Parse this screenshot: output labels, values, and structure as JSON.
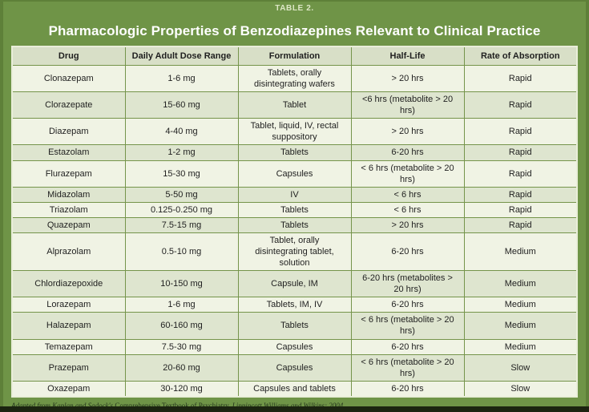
{
  "header": {
    "table_label": "TABLE 2.",
    "title": "Pharmacologic Properties of Benzodiazepines Relevant to Clinical Practice"
  },
  "table": {
    "columns": [
      "Drug",
      "Daily Adult Dose Range",
      "Formulation",
      "Half-Life",
      "Rate of Absorption"
    ],
    "rows": [
      {
        "drug": "Clonazepam",
        "dose": "1-6 mg",
        "formulation": "Tablets, orally disintegrating wafers",
        "half_life": "> 20 hrs",
        "absorption": "Rapid"
      },
      {
        "drug": "Clorazepate",
        "dose": "15-60 mg",
        "formulation": "Tablet",
        "half_life": "<6 hrs (metabolite > 20 hrs)",
        "absorption": "Rapid"
      },
      {
        "drug": "Diazepam",
        "dose": "4-40 mg",
        "formulation": "Tablet, liquid, IV, rectal suppository",
        "half_life": "> 20 hrs",
        "absorption": "Rapid"
      },
      {
        "drug": "Estazolam",
        "dose": "1-2 mg",
        "formulation": "Tablets",
        "half_life": "6-20 hrs",
        "absorption": "Rapid"
      },
      {
        "drug": "Flurazepam",
        "dose": "15-30 mg",
        "formulation": "Capsules",
        "half_life": "< 6 hrs (metabolite > 20 hrs)",
        "absorption": "Rapid"
      },
      {
        "drug": "Midazolam",
        "dose": "5-50 mg",
        "formulation": "IV",
        "half_life": "< 6 hrs",
        "absorption": "Rapid"
      },
      {
        "drug": "Triazolam",
        "dose": "0.125-0.250 mg",
        "formulation": "Tablets",
        "half_life": "< 6 hrs",
        "absorption": "Rapid"
      },
      {
        "drug": "Quazepam",
        "dose": "7.5-15 mg",
        "formulation": "Tablets",
        "half_life": "> 20 hrs",
        "absorption": "Rapid"
      },
      {
        "drug": "Alprazolam",
        "dose": "0.5-10 mg",
        "formulation": "Tablet, orally disintegrating tablet, solution",
        "half_life": "6-20 hrs",
        "absorption": "Medium"
      },
      {
        "drug": "Chlordiazepoxide",
        "dose": "10-150 mg",
        "formulation": "Capsule, IM",
        "half_life": "6-20 hrs (metabolites > 20 hrs)",
        "absorption": "Medium"
      },
      {
        "drug": "Lorazepam",
        "dose": "1-6 mg",
        "formulation": "Tablets, IM, IV",
        "half_life": "6-20 hrs",
        "absorption": "Medium"
      },
      {
        "drug": "Halazepam",
        "dose": "60-160 mg",
        "formulation": "Tablets",
        "half_life": "< 6 hrs (metabolite > 20 hrs)",
        "absorption": "Medium"
      },
      {
        "drug": "Temazepam",
        "dose": "7.5-30 mg",
        "formulation": "Capsules",
        "half_life": "6-20 hrs",
        "absorption": "Medium"
      },
      {
        "drug": "Prazepam",
        "dose": "20-60 mg",
        "formulation": "Capsules",
        "half_life": "< 6 hrs (metabolite > 20 hrs)",
        "absorption": "Slow"
      },
      {
        "drug": "Oxazepam",
        "dose": "30-120 mg",
        "formulation": "Capsules and tablets",
        "half_life": "6-20 hrs",
        "absorption": "Slow"
      }
    ]
  },
  "footnote": {
    "lead_italic": "Adapted from Kaplan and Sadock's",
    "book_title": "Comprehensive Textbook of Psychiatry.",
    "publisher_italic": "Lippincott Williams and Wilkins; 2004."
  },
  "colors": {
    "background_green": "#6f9447",
    "edge_green": "#5e8039",
    "header_row_bg": "#d8dfc7",
    "row_light_bg": "#f0f3e4",
    "row_dark_bg": "#dee5cf",
    "grid_line": "#75944b",
    "table_outer_border": "#e9eed9",
    "title_text": "#ffffff",
    "label_text": "#dde7c6",
    "body_text": "#1f1f1f",
    "footnote_text": "#22331a",
    "bottom_band": "#1b2410"
  }
}
